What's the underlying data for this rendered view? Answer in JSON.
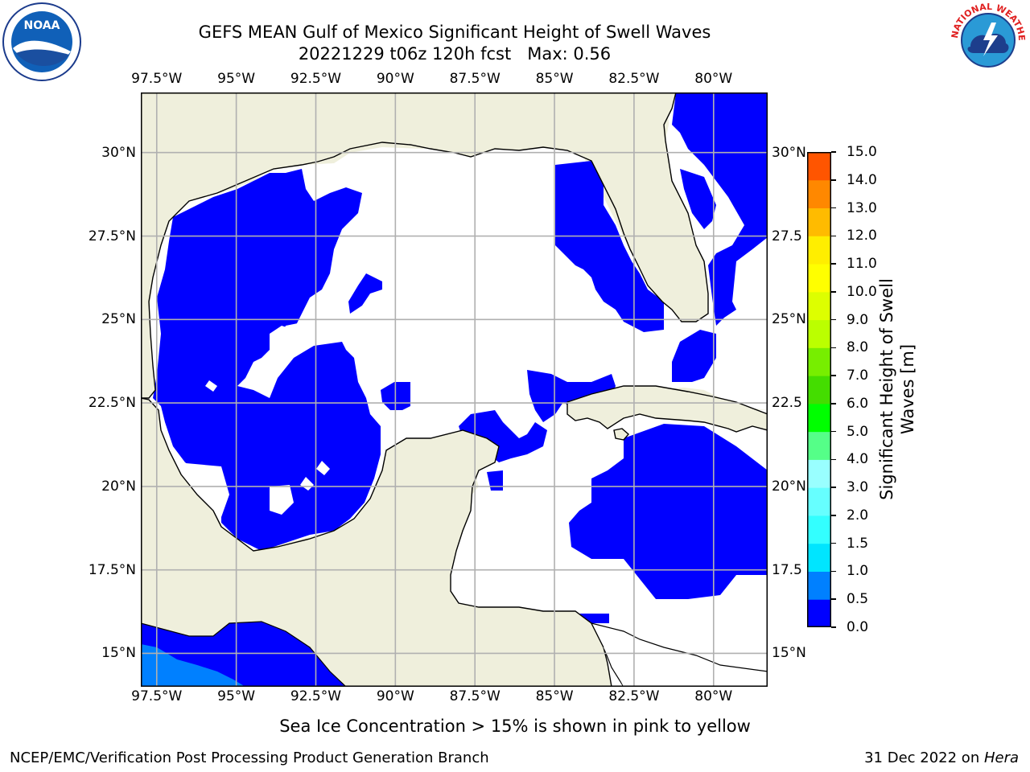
{
  "header": {
    "title_line1": "GEFS MEAN Gulf of Mexico Significant Height of Swell Waves",
    "title_line2": "20221229 t06z 120h fcst   Max: 0.56"
  },
  "logos": {
    "left": {
      "name": "noaa-logo",
      "text": "NOAA"
    },
    "right": {
      "name": "nws-logo",
      "text": "NATIONAL WEATHER SERVICE"
    }
  },
  "map": {
    "lon_ticks": [
      "97.5°W",
      "95°W",
      "92.5°W",
      "90°W",
      "87.5°W",
      "85°W",
      "82.5°W",
      "80°W"
    ],
    "lat_ticks_left": [
      "30°N",
      "27.5°N",
      "25°N",
      "22.5°N",
      "20°N",
      "17.5°N",
      "15°N"
    ],
    "lat_ticks_right": [
      "30°N",
      "27.5",
      "25°N",
      "22.5",
      "20°N",
      "17.5",
      "15°N"
    ],
    "extent": {
      "lon_min": -98.0,
      "lon_max": -78.3,
      "lat_min": 14.0,
      "lat_max": 31.8
    },
    "colors": {
      "land": "#efefdc",
      "ocean_low": "#ffffff",
      "swell_0_0.5": "#0000ff",
      "swell_0.5_1.0": "#0080ff",
      "grid": "#b0b0b0",
      "coast": "#000000"
    }
  },
  "colorbar": {
    "label": "Significant Height of Swell Waves [m]",
    "ticks": [
      "0.0",
      "0.5",
      "1.0",
      "1.5",
      "2.0",
      "3.0",
      "4.0",
      "5.0",
      "6.0",
      "7.0",
      "8.0",
      "9.0",
      "10.0",
      "11.0",
      "12.0",
      "13.0",
      "14.0",
      "15.0"
    ],
    "colors": [
      "#0000ff",
      "#0080ff",
      "#00e5ff",
      "#33ffff",
      "#66ffff",
      "#99ffff",
      "#55ff88",
      "#00ff00",
      "#44dd00",
      "#77ee00",
      "#bbff00",
      "#ddff00",
      "#ffff00",
      "#ffee00",
      "#ffbb00",
      "#ff8800",
      "#ff5500",
      "#ff2200",
      "#ff0000"
    ]
  },
  "notes": {
    "ice": "Sea Ice Concentration > 15% is shown in pink to yellow",
    "footer_left": "NCEP/EMC/Verification Post Processing Product Generation Branch",
    "footer_right_date": "31 Dec 2022 on ",
    "footer_right_machine": "Hera"
  }
}
